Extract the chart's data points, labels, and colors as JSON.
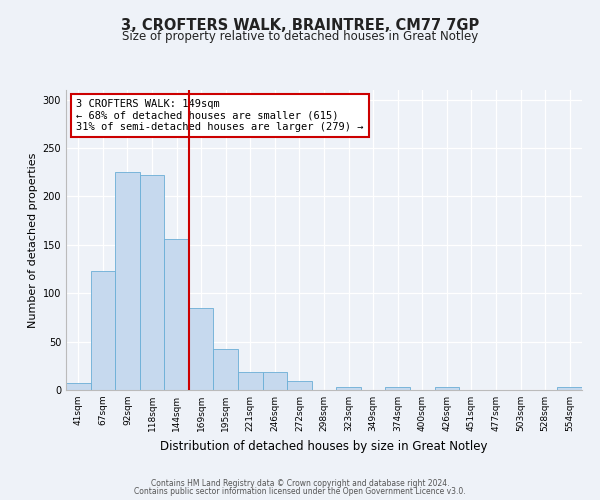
{
  "title": "3, CROFTERS WALK, BRAINTREE, CM77 7GP",
  "subtitle": "Size of property relative to detached houses in Great Notley",
  "xlabel": "Distribution of detached houses by size in Great Notley",
  "ylabel": "Number of detached properties",
  "bin_labels": [
    "41sqm",
    "67sqm",
    "92sqm",
    "118sqm",
    "144sqm",
    "169sqm",
    "195sqm",
    "221sqm",
    "246sqm",
    "272sqm",
    "298sqm",
    "323sqm",
    "349sqm",
    "374sqm",
    "400sqm",
    "426sqm",
    "451sqm",
    "477sqm",
    "503sqm",
    "528sqm",
    "554sqm"
  ],
  "bar_heights": [
    7,
    123,
    225,
    222,
    156,
    85,
    42,
    19,
    19,
    9,
    0,
    3,
    0,
    3,
    0,
    3,
    0,
    0,
    0,
    0,
    3
  ],
  "bar_color": "#c6d9ee",
  "bar_edge_color": "#6aaed6",
  "property_line_color": "#cc0000",
  "property_bin_index": 4,
  "annotation_line1": "3 CROFTERS WALK: 149sqm",
  "annotation_line2": "← 68% of detached houses are smaller (615)",
  "annotation_line3": "31% of semi-detached houses are larger (279) →",
  "annotation_box_color": "#cc0000",
  "ylim": [
    0,
    310
  ],
  "yticks": [
    0,
    50,
    100,
    150,
    200,
    250,
    300
  ],
  "footer_line1": "Contains HM Land Registry data © Crown copyright and database right 2024.",
  "footer_line2": "Contains public sector information licensed under the Open Government Licence v3.0.",
  "bg_color": "#eef2f8",
  "plot_bg_color": "#eef2f8",
  "grid_color": "#ffffff",
  "title_fontsize": 10.5,
  "subtitle_fontsize": 8.5,
  "ylabel_fontsize": 8,
  "xlabel_fontsize": 8.5,
  "tick_fontsize": 6.5,
  "footer_fontsize": 5.5
}
